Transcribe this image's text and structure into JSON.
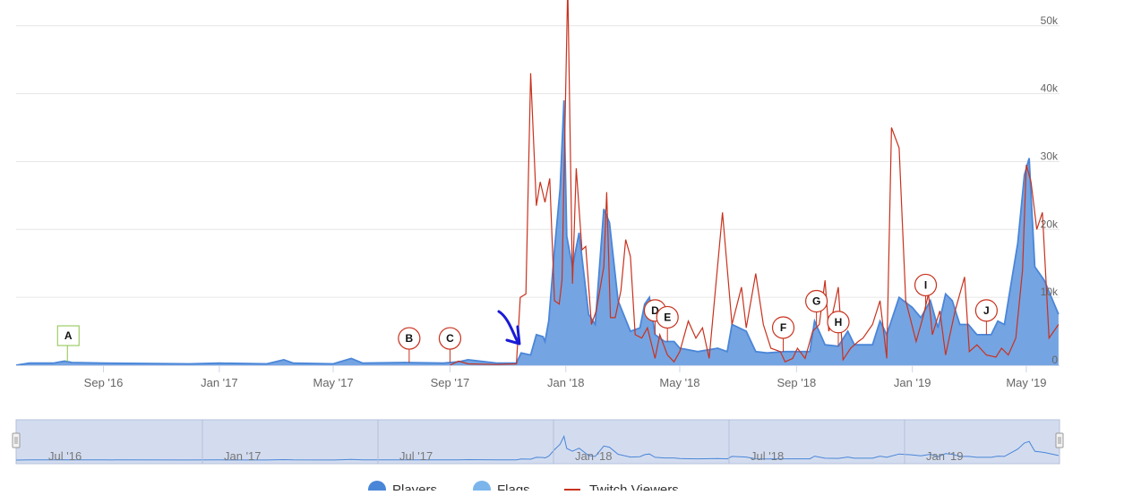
{
  "chart_data": {
    "type": "area",
    "title": "",
    "x_axis": {
      "type": "date",
      "range": [
        "2016-06-01",
        "2019-06-05"
      ],
      "tick_labels": [
        {
          "date": "2016-09-01",
          "label": "Sep '16"
        },
        {
          "date": "2017-01-01",
          "label": "Jan '17"
        },
        {
          "date": "2017-05-01",
          "label": "May '17"
        },
        {
          "date": "2017-09-01",
          "label": "Sep '17"
        },
        {
          "date": "2018-01-01",
          "label": "Jan '18"
        },
        {
          "date": "2018-05-01",
          "label": "May '18"
        },
        {
          "date": "2018-09-01",
          "label": "Sep '18"
        },
        {
          "date": "2019-01-01",
          "label": "Jan '19"
        },
        {
          "date": "2019-05-01",
          "label": "May '19"
        }
      ]
    },
    "y_axis": {
      "position": "right",
      "range": [
        0,
        53000
      ],
      "ticks": [
        {
          "value": 0,
          "label": "0"
        },
        {
          "value": 10000,
          "label": "10k"
        },
        {
          "value": 20000,
          "label": "20k"
        },
        {
          "value": 30000,
          "label": "30k"
        },
        {
          "value": 40000,
          "label": "40k"
        },
        {
          "value": 50000,
          "label": "50k"
        }
      ]
    },
    "grid": true,
    "legend": {
      "position": "bottom",
      "items": [
        {
          "label": "Players",
          "color": "#4a86d8",
          "symbol": "circle"
        },
        {
          "label": "Flags",
          "color": "#7cb5ec",
          "symbol": "circle"
        },
        {
          "label": "Twitch Viewers",
          "color": "#c8321e",
          "symbol": "line"
        }
      ]
    },
    "series": [
      {
        "name": "Players",
        "kind": "area",
        "color": "#4a86d8",
        "fill": "#6e9fe0",
        "points": [
          [
            "2016-06-01",
            0
          ],
          [
            "2016-06-15",
            300
          ],
          [
            "2016-07-10",
            300
          ],
          [
            "2016-07-22",
            600
          ],
          [
            "2016-07-30",
            400
          ],
          [
            "2016-09-01",
            300
          ],
          [
            "2016-12-01",
            200
          ],
          [
            "2017-01-01",
            300
          ],
          [
            "2017-02-20",
            200
          ],
          [
            "2017-03-10",
            800
          ],
          [
            "2017-03-20",
            300
          ],
          [
            "2017-05-01",
            200
          ],
          [
            "2017-05-20",
            1000
          ],
          [
            "2017-06-01",
            300
          ],
          [
            "2017-07-15",
            400
          ],
          [
            "2017-08-25",
            300
          ],
          [
            "2017-09-10",
            500
          ],
          [
            "2017-09-20",
            800
          ],
          [
            "2017-10-20",
            300
          ],
          [
            "2017-11-10",
            300
          ],
          [
            "2017-11-15",
            1800
          ],
          [
            "2017-11-25",
            1500
          ],
          [
            "2017-12-01",
            4500
          ],
          [
            "2017-12-08",
            4200
          ],
          [
            "2017-12-10",
            3500
          ],
          [
            "2017-12-14",
            6500
          ],
          [
            "2017-12-20",
            17000
          ],
          [
            "2017-12-26",
            26000
          ],
          [
            "2017-12-30",
            39000
          ],
          [
            "2018-01-02",
            19000
          ],
          [
            "2018-01-08",
            14500
          ],
          [
            "2018-01-15",
            19500
          ],
          [
            "2018-01-25",
            7500
          ],
          [
            "2018-02-01",
            6000
          ],
          [
            "2018-02-10",
            23000
          ],
          [
            "2018-02-16",
            21000
          ],
          [
            "2018-02-25",
            9500
          ],
          [
            "2018-03-10",
            5000
          ],
          [
            "2018-03-20",
            5500
          ],
          [
            "2018-03-25",
            9000
          ],
          [
            "2018-03-30",
            10000
          ],
          [
            "2018-04-05",
            4500
          ],
          [
            "2018-04-15",
            3500
          ],
          [
            "2018-04-25",
            3500
          ],
          [
            "2018-05-01",
            2500
          ],
          [
            "2018-05-20",
            2000
          ],
          [
            "2018-06-10",
            2500
          ],
          [
            "2018-06-20",
            2000
          ],
          [
            "2018-06-25",
            6000
          ],
          [
            "2018-07-10",
            5000
          ],
          [
            "2018-07-20",
            2000
          ],
          [
            "2018-08-01",
            1800
          ],
          [
            "2018-08-20",
            2000
          ],
          [
            "2018-09-01",
            2000
          ],
          [
            "2018-09-15",
            2000
          ],
          [
            "2018-09-20",
            6500
          ],
          [
            "2018-10-01",
            3000
          ],
          [
            "2018-10-15",
            2800
          ],
          [
            "2018-10-25",
            5000
          ],
          [
            "2018-11-01",
            3000
          ],
          [
            "2018-11-20",
            3000
          ],
          [
            "2018-11-28",
            6500
          ],
          [
            "2018-12-05",
            4500
          ],
          [
            "2018-12-18",
            10000
          ],
          [
            "2019-01-01",
            8500
          ],
          [
            "2019-01-10",
            7000
          ],
          [
            "2019-01-20",
            9500
          ],
          [
            "2019-01-28",
            5500
          ],
          [
            "2019-02-05",
            10500
          ],
          [
            "2019-02-12",
            9500
          ],
          [
            "2019-02-20",
            6000
          ],
          [
            "2019-03-01",
            6000
          ],
          [
            "2019-03-10",
            4500
          ],
          [
            "2019-03-25",
            4500
          ],
          [
            "2019-04-01",
            6500
          ],
          [
            "2019-04-08",
            6000
          ],
          [
            "2019-04-15",
            12000
          ],
          [
            "2019-04-22",
            18000
          ],
          [
            "2019-04-29",
            28000
          ],
          [
            "2019-05-04",
            30500
          ],
          [
            "2019-05-10",
            14500
          ],
          [
            "2019-05-20",
            12500
          ],
          [
            "2019-06-04",
            7500
          ]
        ]
      },
      {
        "name": "Twitch Viewers",
        "kind": "line",
        "color": "#c8321e",
        "points": [
          [
            "2017-09-01",
            0
          ],
          [
            "2017-09-10",
            600
          ],
          [
            "2017-09-20",
            200
          ],
          [
            "2017-10-20",
            100
          ],
          [
            "2017-11-10",
            200
          ],
          [
            "2017-11-14",
            10000
          ],
          [
            "2017-11-20",
            10500
          ],
          [
            "2017-11-25",
            43000
          ],
          [
            "2017-12-01",
            23500
          ],
          [
            "2017-12-05",
            27000
          ],
          [
            "2017-12-10",
            24000
          ],
          [
            "2017-12-15",
            27500
          ],
          [
            "2017-12-20",
            9500
          ],
          [
            "2017-12-25",
            9000
          ],
          [
            "2017-12-28",
            12500
          ],
          [
            "2018-01-03",
            56000
          ],
          [
            "2018-01-08",
            12000
          ],
          [
            "2018-01-12",
            29000
          ],
          [
            "2018-01-18",
            17000
          ],
          [
            "2018-01-22",
            17500
          ],
          [
            "2018-01-28",
            6000
          ],
          [
            "2018-02-02",
            8000
          ],
          [
            "2018-02-10",
            14500
          ],
          [
            "2018-02-13",
            25500
          ],
          [
            "2018-02-17",
            7000
          ],
          [
            "2018-02-22",
            7000
          ],
          [
            "2018-02-28",
            11000
          ],
          [
            "2018-03-05",
            18500
          ],
          [
            "2018-03-10",
            16000
          ],
          [
            "2018-03-15",
            4500
          ],
          [
            "2018-03-22",
            4000
          ],
          [
            "2018-03-28",
            5500
          ],
          [
            "2018-04-05",
            1000
          ],
          [
            "2018-04-10",
            4500
          ],
          [
            "2018-04-18",
            1500
          ],
          [
            "2018-04-25",
            500
          ],
          [
            "2018-05-01",
            2000
          ],
          [
            "2018-05-10",
            6500
          ],
          [
            "2018-05-18",
            4000
          ],
          [
            "2018-05-25",
            5500
          ],
          [
            "2018-06-01",
            1000
          ],
          [
            "2018-06-15",
            22500
          ],
          [
            "2018-06-25",
            6000
          ],
          [
            "2018-07-05",
            11500
          ],
          [
            "2018-07-10",
            5500
          ],
          [
            "2018-07-20",
            13500
          ],
          [
            "2018-07-28",
            6000
          ],
          [
            "2018-08-05",
            2500
          ],
          [
            "2018-08-15",
            2000
          ],
          [
            "2018-08-20",
            500
          ],
          [
            "2018-08-28",
            1000
          ],
          [
            "2018-09-02",
            2500
          ],
          [
            "2018-09-10",
            1000
          ],
          [
            "2018-09-18",
            5000
          ],
          [
            "2018-09-25",
            6000
          ],
          [
            "2018-10-01",
            12500
          ],
          [
            "2018-10-05",
            5000
          ],
          [
            "2018-10-15",
            11500
          ],
          [
            "2018-10-20",
            800
          ],
          [
            "2018-10-28",
            2500
          ],
          [
            "2018-11-05",
            3500
          ],
          [
            "2018-11-10",
            4000
          ],
          [
            "2018-11-20",
            6000
          ],
          [
            "2018-11-28",
            9500
          ],
          [
            "2018-12-05",
            1000
          ],
          [
            "2018-12-10",
            35000
          ],
          [
            "2018-12-18",
            32000
          ],
          [
            "2018-12-25",
            9500
          ],
          [
            "2019-01-05",
            3500
          ],
          [
            "2019-01-12",
            7000
          ],
          [
            "2019-01-18",
            10500
          ],
          [
            "2019-01-22",
            4500
          ],
          [
            "2019-01-30",
            8000
          ],
          [
            "2019-02-05",
            1500
          ],
          [
            "2019-02-15",
            8000
          ],
          [
            "2019-02-25",
            13000
          ],
          [
            "2019-03-02",
            2000
          ],
          [
            "2019-03-10",
            3000
          ],
          [
            "2019-03-20",
            1500
          ],
          [
            "2019-03-30",
            1200
          ],
          [
            "2019-04-05",
            2500
          ],
          [
            "2019-04-12",
            1500
          ],
          [
            "2019-04-20",
            4000
          ],
          [
            "2019-04-27",
            14000
          ],
          [
            "2019-05-01",
            29500
          ],
          [
            "2019-05-06",
            27000
          ],
          [
            "2019-05-12",
            20000
          ],
          [
            "2019-05-18",
            22500
          ],
          [
            "2019-05-25",
            4000
          ],
          [
            "2019-06-04",
            6000
          ]
        ]
      }
    ],
    "flags": [
      {
        "label": "A",
        "date": "2016-07-25",
        "shape": "square"
      },
      {
        "label": "B",
        "date": "2017-07-20",
        "shape": "circle"
      },
      {
        "label": "C",
        "date": "2017-09-01",
        "shape": "circle"
      },
      {
        "label": "D",
        "date": "2018-04-05",
        "shape": "circle"
      },
      {
        "label": "E",
        "date": "2018-04-18",
        "shape": "circle"
      },
      {
        "label": "F",
        "date": "2018-08-18",
        "shape": "circle"
      },
      {
        "label": "G",
        "date": "2018-09-22",
        "shape": "circle"
      },
      {
        "label": "H",
        "date": "2018-10-15",
        "shape": "circle"
      },
      {
        "label": "I",
        "date": "2019-01-15",
        "shape": "circle"
      },
      {
        "label": "J",
        "date": "2019-03-20",
        "shape": "circle"
      }
    ],
    "annotation": {
      "type": "hand-drawn arrow",
      "color": "#1a1ad6",
      "near_date": "2017-11-15"
    },
    "navigator": {
      "tick_labels": [
        "Jul '16",
        "Jan '17",
        "Jul '17",
        "Jan '18",
        "Jul '18",
        "Jan '19"
      ]
    }
  }
}
